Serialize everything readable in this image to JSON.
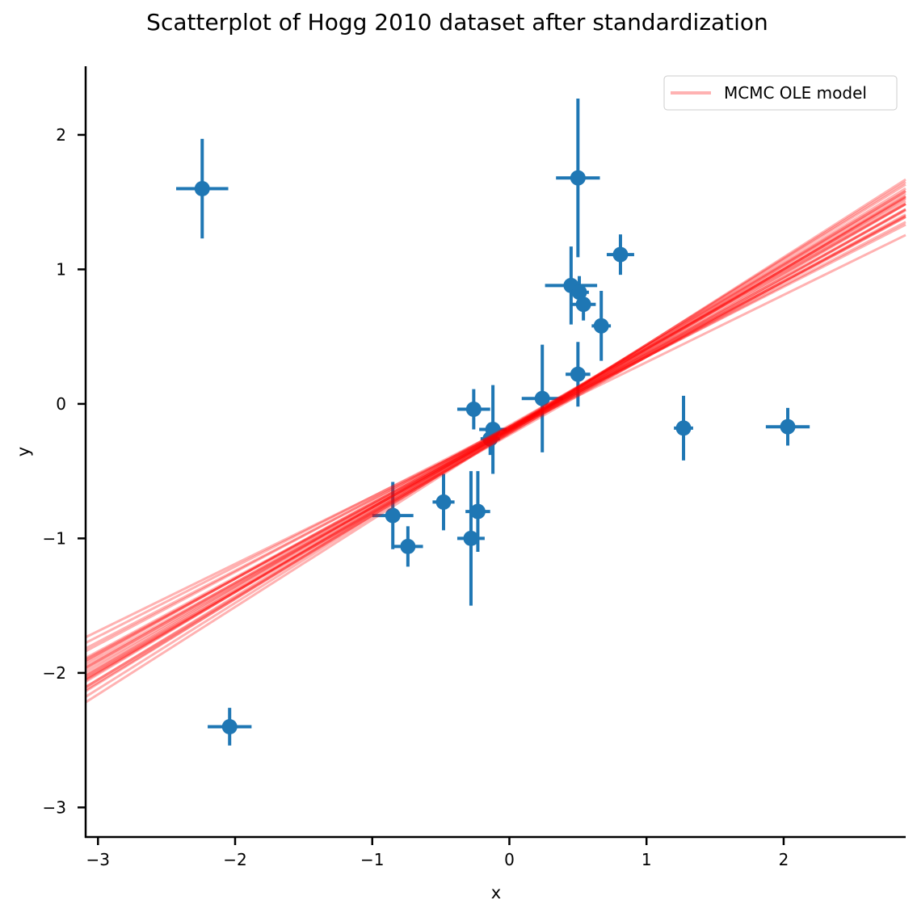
{
  "chart_data": {
    "type": "scatter",
    "title": "Scatterplot of Hogg 2010 dataset after standardization",
    "xlabel": "x",
    "ylabel": "y",
    "xlim": [
      -3.09,
      2.89
    ],
    "ylim": [
      -3.22,
      2.51
    ],
    "xticks": [
      -3,
      -2,
      -1,
      0,
      1,
      2
    ],
    "yticks": [
      -3,
      -2,
      -1,
      0,
      1,
      2
    ],
    "xtick_labels": [
      "−3",
      "−2",
      "−1",
      "0",
      "1",
      "2"
    ],
    "ytick_labels": [
      "−3",
      "−2",
      "−1",
      "0",
      "1",
      "2"
    ],
    "grid": false,
    "legend": {
      "placement": "top-right",
      "entries": [
        {
          "label": "MCMC OLE model",
          "color": "#ff0000"
        }
      ]
    },
    "points_color": "#1f77b4",
    "line_color": "#ff0000",
    "points": [
      {
        "x": -2.24,
        "y": 1.6,
        "xerr": 0.19,
        "yerr": 0.37
      },
      {
        "x": -2.04,
        "y": -2.4,
        "xerr": 0.16,
        "yerr": 0.14
      },
      {
        "x": -0.85,
        "y": -0.83,
        "xerr": 0.15,
        "yerr": 0.25
      },
      {
        "x": -0.74,
        "y": -1.06,
        "xerr": 0.11,
        "yerr": 0.15
      },
      {
        "x": -0.48,
        "y": -0.73,
        "xerr": 0.08,
        "yerr": 0.21
      },
      {
        "x": -0.28,
        "y": -1.0,
        "xerr": 0.1,
        "yerr": 0.5
      },
      {
        "x": -0.23,
        "y": -0.8,
        "xerr": 0.09,
        "yerr": 0.3
      },
      {
        "x": -0.26,
        "y": -0.04,
        "xerr": 0.12,
        "yerr": 0.15
      },
      {
        "x": -0.12,
        "y": -0.19,
        "xerr": 0.1,
        "yerr": 0.33
      },
      {
        "x": -0.14,
        "y": -0.26,
        "xerr": 0.07,
        "yerr": 0.12
      },
      {
        "x": 0.24,
        "y": 0.04,
        "xerr": 0.15,
        "yerr": 0.4
      },
      {
        "x": 0.5,
        "y": 1.68,
        "xerr": 0.16,
        "yerr": 0.59
      },
      {
        "x": 0.45,
        "y": 0.88,
        "xerr": 0.19,
        "yerr": 0.29
      },
      {
        "x": 0.51,
        "y": 0.83,
        "xerr": 0.07,
        "yerr": 0.12
      },
      {
        "x": 0.54,
        "y": 0.74,
        "xerr": 0.09,
        "yerr": 0.12
      },
      {
        "x": 0.67,
        "y": 0.58,
        "xerr": 0.07,
        "yerr": 0.26
      },
      {
        "x": 0.81,
        "y": 1.11,
        "xerr": 0.1,
        "yerr": 0.15
      },
      {
        "x": 0.5,
        "y": 0.22,
        "xerr": 0.09,
        "yerr": 0.24
      },
      {
        "x": 1.27,
        "y": -0.18,
        "xerr": 0.07,
        "yerr": 0.24
      },
      {
        "x": 2.03,
        "y": -0.17,
        "xerr": 0.16,
        "yerr": 0.14
      }
    ],
    "model_lines": [
      {
        "slope": 0.58,
        "intercept": -0.19
      },
      {
        "slope": 0.6,
        "intercept": -0.2
      },
      {
        "slope": 0.56,
        "intercept": -0.18
      },
      {
        "slope": 0.62,
        "intercept": -0.21
      },
      {
        "slope": 0.54,
        "intercept": -0.17
      },
      {
        "slope": 0.59,
        "intercept": -0.22
      },
      {
        "slope": 0.57,
        "intercept": -0.16
      },
      {
        "slope": 0.61,
        "intercept": -0.18
      },
      {
        "slope": 0.55,
        "intercept": -0.2
      },
      {
        "slope": 0.63,
        "intercept": -0.19
      },
      {
        "slope": 0.52,
        "intercept": -0.17
      },
      {
        "slope": 0.6,
        "intercept": -0.17
      },
      {
        "slope": 0.58,
        "intercept": -0.23
      },
      {
        "slope": 0.65,
        "intercept": -0.21
      },
      {
        "slope": 0.5,
        "intercept": -0.19
      },
      {
        "slope": 0.57,
        "intercept": -0.2
      },
      {
        "slope": 0.59,
        "intercept": -0.18
      },
      {
        "slope": 0.62,
        "intercept": -0.19
      },
      {
        "slope": 0.56,
        "intercept": -0.21
      },
      {
        "slope": 0.53,
        "intercept": -0.18
      },
      {
        "slope": 0.64,
        "intercept": -0.2
      },
      {
        "slope": 0.58,
        "intercept": -0.17
      },
      {
        "slope": 0.61,
        "intercept": -0.22
      },
      {
        "slope": 0.55,
        "intercept": -0.19
      },
      {
        "slope": 0.6,
        "intercept": -0.19
      }
    ]
  }
}
